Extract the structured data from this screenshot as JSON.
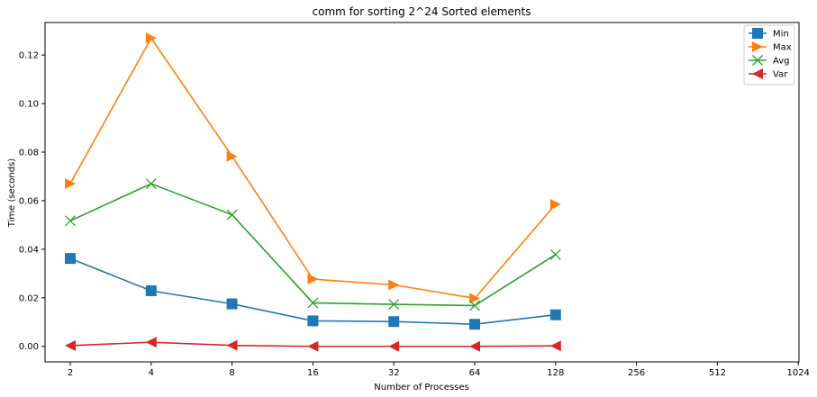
{
  "chart_data": {
    "type": "line",
    "title": "comm for sorting 2^24 Sorted elements",
    "xlabel": "Number of Processes",
    "ylabel": "Time (seconds)",
    "x_categories": [
      "2",
      "4",
      "8",
      "16",
      "32",
      "64",
      "128",
      "256",
      "512",
      "1024"
    ],
    "y_ticks": [
      "0.00",
      "0.02",
      "0.04",
      "0.06",
      "0.08",
      "0.10",
      "0.12"
    ],
    "ylim": [
      -0.0064,
      0.1334
    ],
    "grid": false,
    "legend_position": "top-right",
    "series": [
      {
        "name": "Min",
        "color": "#1f77b4",
        "marker": "square",
        "values": [
          0.0362,
          0.0229,
          0.0175,
          0.0105,
          0.0102,
          0.0091,
          0.013
        ]
      },
      {
        "name": "Max",
        "color": "#ff7f0e",
        "marker": "triangle-right",
        "values": [
          0.067,
          0.127,
          0.0783,
          0.0277,
          0.0253,
          0.0198,
          0.0585
        ]
      },
      {
        "name": "Avg",
        "color": "#2ca02c",
        "marker": "x",
        "values": [
          0.0517,
          0.067,
          0.0542,
          0.0179,
          0.0173,
          0.0168,
          0.0378
        ]
      },
      {
        "name": "Var",
        "color": "#d62728",
        "marker": "triangle-left",
        "values": [
          0.0003,
          0.0017,
          0.0004,
          0.0,
          0.0,
          0.0,
          0.0002
        ]
      }
    ]
  }
}
